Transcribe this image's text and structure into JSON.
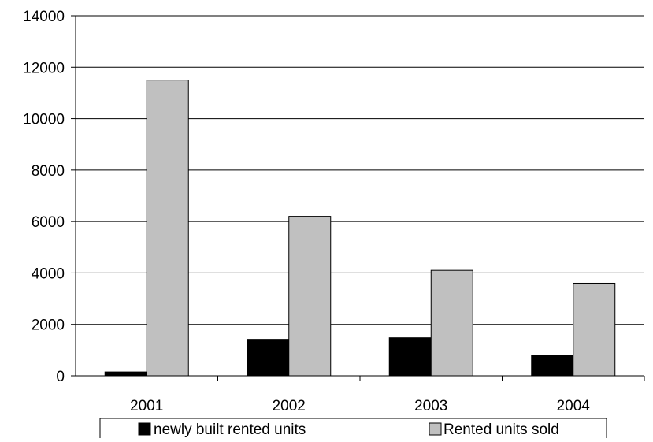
{
  "chart_data": {
    "type": "bar",
    "categories": [
      "2001",
      "2002",
      "2003",
      "2004"
    ],
    "series": [
      {
        "name": "newly built rented units",
        "values": [
          150,
          1420,
          1480,
          790
        ],
        "color": "#000000"
      },
      {
        "name": "Rented units sold",
        "values": [
          11500,
          6200,
          4100,
          3600
        ],
        "color": "#c0c0c0"
      }
    ],
    "yticks": [
      "0",
      "2000",
      "4000",
      "6000",
      "8000",
      "10000",
      "12000",
      "14000"
    ],
    "ylim": [
      0,
      14000
    ],
    "grid": true,
    "legend": "bottom"
  }
}
